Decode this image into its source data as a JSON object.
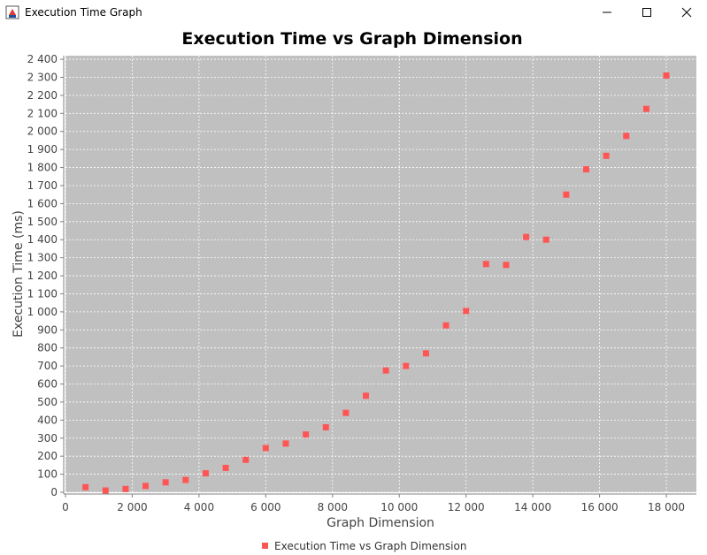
{
  "window": {
    "title": "Execution Time Graph"
  },
  "chart_data": {
    "type": "scatter",
    "title": "Execution Time vs Graph Dimension",
    "xlabel": "Graph Dimension",
    "ylabel": "Execution Time (ms)",
    "xlim": [
      0,
      18900
    ],
    "ylim": [
      0,
      2420
    ],
    "x_ticks": [
      0,
      2000,
      4000,
      6000,
      8000,
      10000,
      12000,
      14000,
      16000,
      18000
    ],
    "x_tick_labels": [
      "0",
      "2 000",
      "4 000",
      "6 000",
      "8 000",
      "10 000",
      "12 000",
      "14 000",
      "16 000",
      "18 000"
    ],
    "y_ticks": [
      0,
      100,
      200,
      300,
      400,
      500,
      600,
      700,
      800,
      900,
      1000,
      1100,
      1200,
      1300,
      1400,
      1500,
      1600,
      1700,
      1800,
      1900,
      2000,
      2100,
      2200,
      2300,
      2400
    ],
    "y_tick_labels": [
      "0",
      "100",
      "200",
      "300",
      "400",
      "500",
      "600",
      "700",
      "800",
      "900",
      "1 000",
      "1 100",
      "1 200",
      "1 300",
      "1 400",
      "1 500",
      "1 600",
      "1 700",
      "1 800",
      "1 900",
      "2 000",
      "2 100",
      "2 200",
      "2 300",
      "2 400"
    ],
    "grid": true,
    "legend_position": "bottom-center",
    "series": [
      {
        "name": "Execution Time vs Graph Dimension",
        "color": "#ff5555",
        "x": [
          600,
          1200,
          1800,
          2400,
          3000,
          3600,
          4200,
          4800,
          5400,
          6000,
          6600,
          7200,
          7800,
          8400,
          9000,
          9600,
          10200,
          10800,
          11400,
          12000,
          12600,
          13200,
          13800,
          14400,
          15000,
          15600,
          16200,
          16800,
          17400,
          18000
        ],
        "y": [
          28,
          10,
          18,
          35,
          55,
          68,
          105,
          135,
          180,
          245,
          270,
          320,
          360,
          440,
          535,
          675,
          700,
          770,
          925,
          1005,
          1265,
          1260,
          1415,
          1400,
          1650,
          1790,
          1865,
          1975,
          2125,
          2310
        ]
      }
    ],
    "colors": {
      "plot_background": "#c0c0c0",
      "gridline": "#ffffff",
      "axis": "#808080",
      "tick_label": "#444444"
    }
  }
}
